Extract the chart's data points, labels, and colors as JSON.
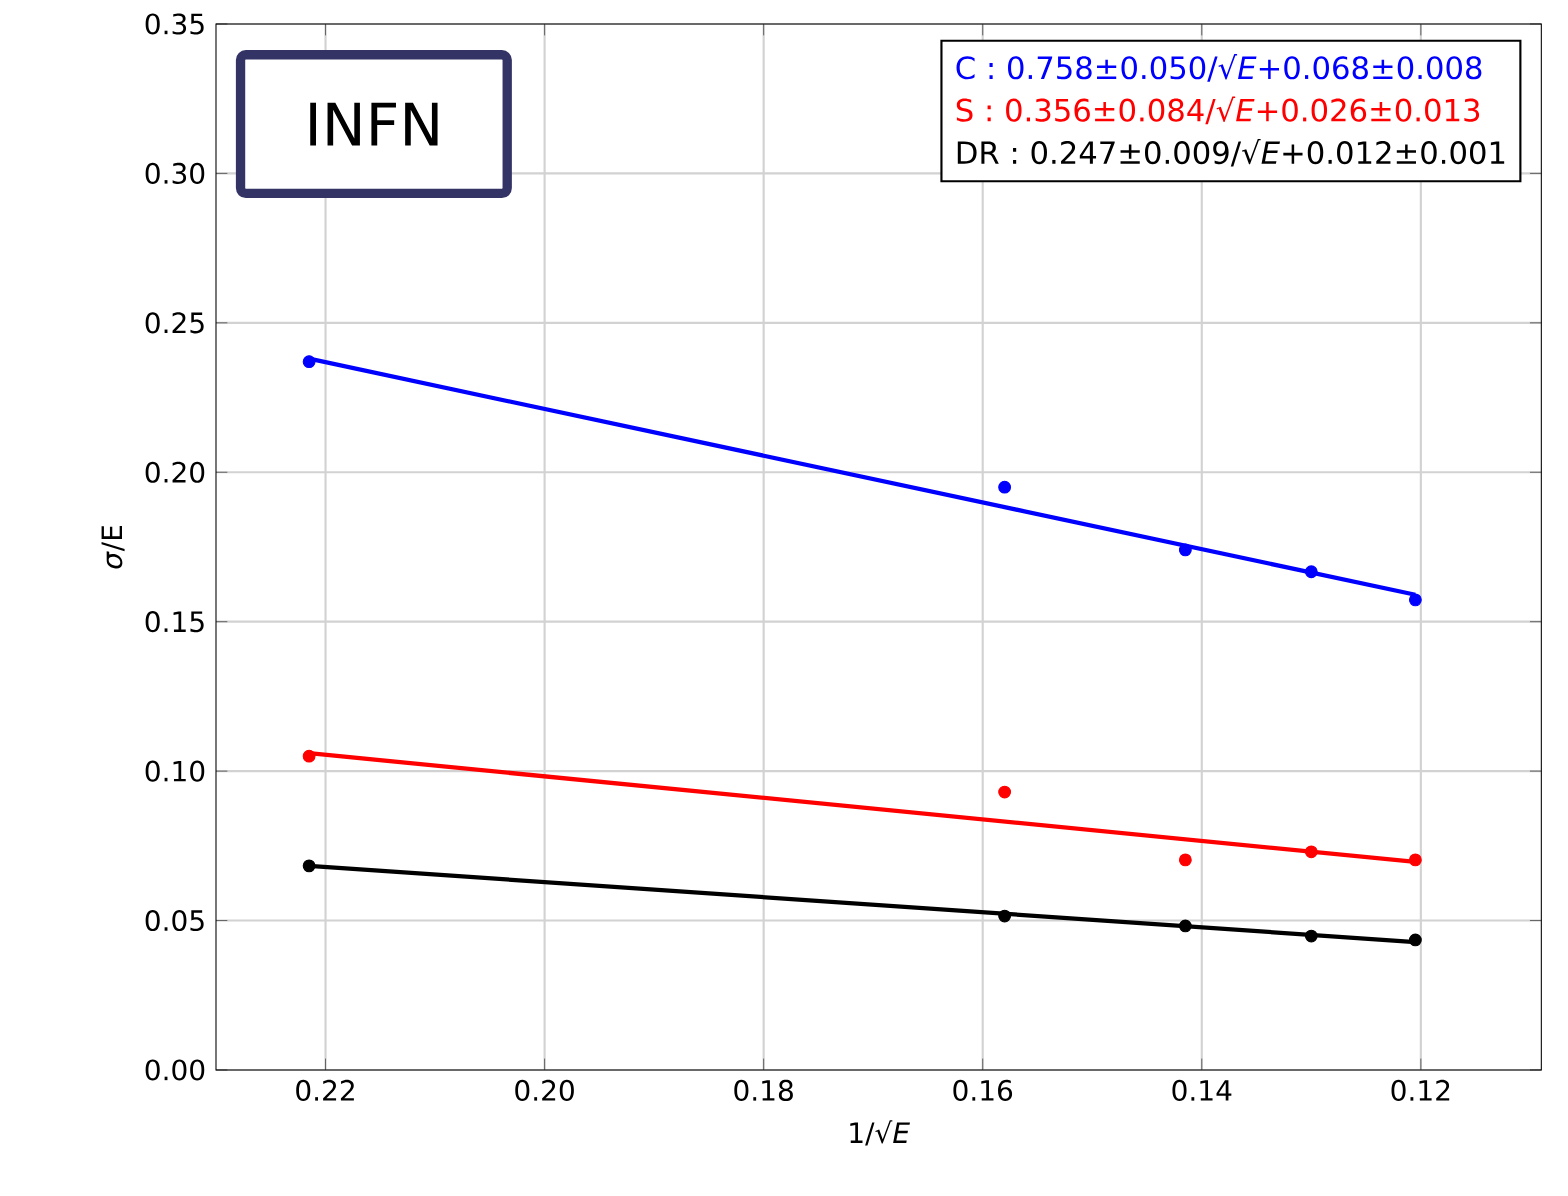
{
  "chart_data": {
    "type": "scatter",
    "xlabel": "1/√*E*",
    "ylabel": "*σ*/E",
    "xlim": [
      0.23,
      0.109
    ],
    "ylim": [
      0,
      0.35
    ],
    "xticks": [
      {
        "value": 0.22,
        "label": "0.22"
      },
      {
        "value": 0.2,
        "label": "0.20"
      },
      {
        "value": 0.18,
        "label": "0.18"
      },
      {
        "value": 0.16,
        "label": "0.16"
      },
      {
        "value": 0.14,
        "label": "0.14"
      },
      {
        "value": 0.12,
        "label": "0.12"
      }
    ],
    "yticks": [
      {
        "value": 0,
        "label": "0.00"
      },
      {
        "value": 0.05,
        "label": "0.05"
      },
      {
        "value": 0.1,
        "label": "0.10"
      },
      {
        "value": 0.15,
        "label": "0.15"
      },
      {
        "value": 0.2,
        "label": "0.20"
      },
      {
        "value": 0.25,
        "label": "0.25"
      },
      {
        "value": 0.3,
        "label": "0.30"
      },
      {
        "value": 0.35,
        "label": "0.35"
      }
    ],
    "grid": true,
    "legend": "top right",
    "annotations": [
      "INFN"
    ],
    "series": [
      {
        "type": "line",
        "marker": "none",
        "name": "C : 0.758±0.050/√*E*+0.068±0.008",
        "color": "#0000ff",
        "x": [
          0.2215,
          0.1205
        ],
        "values": [
          0.238,
          0.159
        ]
      },
      {
        "type": "line",
        "marker": "none",
        "name": "S : 0.356±0.084/√*E*+0.026±0.013",
        "color": "#ff0000",
        "x": [
          0.2215,
          0.1205
        ],
        "values": [
          0.106,
          0.0696
        ]
      },
      {
        "type": "line",
        "marker": "none",
        "name": "DR : 0.247±0.009/√*E*+0.012±0.001",
        "color": "#000000",
        "x": [
          0.2215,
          0.1205
        ],
        "values": [
          0.0683,
          0.0428
        ]
      },
      {
        "marker": "circle",
        "color": "#0000ff",
        "x": [
          0.2215,
          0.158,
          0.1415,
          0.13,
          0.1205
        ],
        "values": [
          0.237,
          0.195,
          0.174,
          0.1667,
          0.1573
        ]
      },
      {
        "marker": "circle",
        "color": "#ff0000",
        "x": [
          0.2215,
          0.158,
          0.1415,
          0.13,
          0.1205
        ],
        "values": [
          0.105,
          0.093,
          0.0703,
          0.073,
          0.0703
        ]
      },
      {
        "marker": "circle",
        "color": "#000000",
        "x": [
          0.2215,
          0.158,
          0.1415,
          0.13,
          0.1205
        ],
        "values": [
          0.0683,
          0.0515,
          0.0482,
          0.0448,
          0.0435
        ]
      }
    ]
  }
}
